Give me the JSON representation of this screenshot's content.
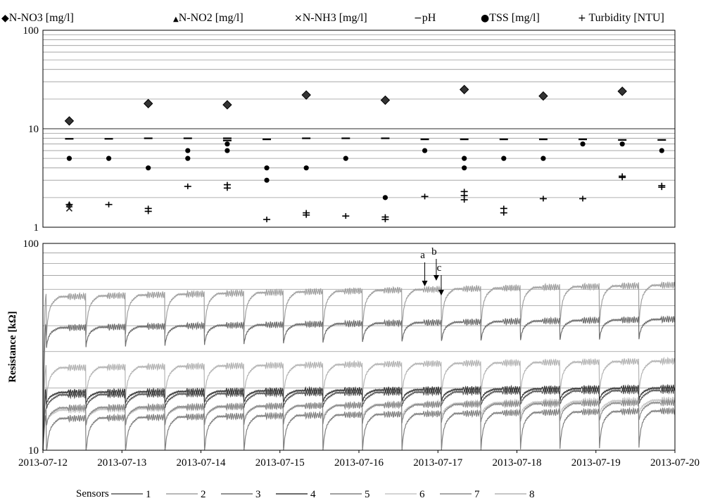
{
  "chart_data": [
    {
      "type": "scatter",
      "y_scale": "log",
      "ylim": [
        1,
        100
      ],
      "y_ticks": [
        "1",
        "10",
        "100"
      ],
      "xlim": [
        "2013-07-12",
        "2013-07-20"
      ],
      "grid": true,
      "legend_position": "top",
      "series": [
        {
          "name": "N-NO3 [mg/l]",
          "marker": "diamond",
          "symbol": "◆",
          "color": "#333333",
          "points": [
            {
              "x": "2013-07-12T08:00",
              "y": 12
            },
            {
              "x": "2013-07-13T08:00",
              "y": 18
            },
            {
              "x": "2013-07-14T08:00",
              "y": 17.5
            },
            {
              "x": "2013-07-15T08:00",
              "y": 22
            },
            {
              "x": "2013-07-16T08:00",
              "y": 19.5
            },
            {
              "x": "2013-07-17T08:00",
              "y": 25
            },
            {
              "x": "2013-07-18T08:00",
              "y": 21.5
            },
            {
              "x": "2013-07-19T08:00",
              "y": 24
            }
          ]
        },
        {
          "name": "N-NO2 [mg/l]",
          "marker": "triangle",
          "symbol": "▲",
          "color": "#333333",
          "points": [
            {
              "x": "2013-07-12T08:00",
              "y": 1.7
            }
          ]
        },
        {
          "name": "N-NH3 [mg/l]",
          "marker": "x",
          "symbol": "×",
          "color": "#333333",
          "points": [
            {
              "x": "2013-07-12T08:00",
              "y": 1.55
            }
          ]
        },
        {
          "name": "pH",
          "marker": "dash",
          "symbol": "−",
          "color": "#000000",
          "points": [
            {
              "x": "2013-07-12T08:00",
              "y": 7.9
            },
            {
              "x": "2013-07-12T20:00",
              "y": 7.9
            },
            {
              "x": "2013-07-13T08:00",
              "y": 8.0
            },
            {
              "x": "2013-07-13T20:00",
              "y": 8.0
            },
            {
              "x": "2013-07-14T08:00",
              "y": 8.0
            },
            {
              "x": "2013-07-14T08:00",
              "y": 7.6
            },
            {
              "x": "2013-07-14T20:00",
              "y": 7.8
            },
            {
              "x": "2013-07-15T08:00",
              "y": 8.0
            },
            {
              "x": "2013-07-15T20:00",
              "y": 8.0
            },
            {
              "x": "2013-07-16T08:00",
              "y": 8.0
            },
            {
              "x": "2013-07-16T20:00",
              "y": 7.8
            },
            {
              "x": "2013-07-17T08:00",
              "y": 7.8
            },
            {
              "x": "2013-07-17T20:00",
              "y": 7.8
            },
            {
              "x": "2013-07-18T08:00",
              "y": 7.8
            },
            {
              "x": "2013-07-18T20:00",
              "y": 7.8
            },
            {
              "x": "2013-07-19T08:00",
              "y": 7.7
            },
            {
              "x": "2013-07-19T20:00",
              "y": 7.7
            }
          ]
        },
        {
          "name": "TSS [mg/l]",
          "marker": "circle",
          "symbol": "●",
          "color": "#000000",
          "points": [
            {
              "x": "2013-07-12T08:00",
              "y": 5
            },
            {
              "x": "2013-07-12T20:00",
              "y": 5
            },
            {
              "x": "2013-07-13T08:00",
              "y": 4
            },
            {
              "x": "2013-07-13T20:00",
              "y": 5
            },
            {
              "x": "2013-07-13T20:00",
              "y": 6
            },
            {
              "x": "2013-07-14T08:00",
              "y": 6
            },
            {
              "x": "2013-07-14T08:00",
              "y": 7
            },
            {
              "x": "2013-07-14T20:00",
              "y": 4
            },
            {
              "x": "2013-07-14T20:00",
              "y": 3
            },
            {
              "x": "2013-07-15T08:00",
              "y": 4
            },
            {
              "x": "2013-07-15T20:00",
              "y": 5
            },
            {
              "x": "2013-07-16T08:00",
              "y": 2
            },
            {
              "x": "2013-07-16T20:00",
              "y": 6
            },
            {
              "x": "2013-07-17T08:00",
              "y": 5
            },
            {
              "x": "2013-07-17T08:00",
              "y": 4
            },
            {
              "x": "2013-07-17T20:00",
              "y": 5
            },
            {
              "x": "2013-07-18T08:00",
              "y": 5
            },
            {
              "x": "2013-07-18T20:00",
              "y": 7
            },
            {
              "x": "2013-07-19T08:00",
              "y": 7
            },
            {
              "x": "2013-07-19T20:00",
              "y": 6
            }
          ]
        },
        {
          "name": "Turbidity [NTU]",
          "marker": "plus",
          "symbol": "+",
          "color": "#000000",
          "points": [
            {
              "x": "2013-07-12T08:00",
              "y": 1.7
            },
            {
              "x": "2013-07-12T20:00",
              "y": 1.7
            },
            {
              "x": "2013-07-13T08:00",
              "y": 1.55
            },
            {
              "x": "2013-07-13T08:00",
              "y": 1.45
            },
            {
              "x": "2013-07-13T20:00",
              "y": 2.6
            },
            {
              "x": "2013-07-14T08:00",
              "y": 2.7
            },
            {
              "x": "2013-07-14T08:00",
              "y": 2.5
            },
            {
              "x": "2013-07-14T20:00",
              "y": 1.2
            },
            {
              "x": "2013-07-15T08:00",
              "y": 1.4
            },
            {
              "x": "2013-07-15T08:00",
              "y": 1.33
            },
            {
              "x": "2013-07-15T20:00",
              "y": 1.3
            },
            {
              "x": "2013-07-16T08:00",
              "y": 1.27
            },
            {
              "x": "2013-07-16T08:00",
              "y": 1.2
            },
            {
              "x": "2013-07-16T20:00",
              "y": 2.05
            },
            {
              "x": "2013-07-17T08:00",
              "y": 2.3
            },
            {
              "x": "2013-07-17T08:00",
              "y": 2.1
            },
            {
              "x": "2013-07-17T08:00",
              "y": 1.9
            },
            {
              "x": "2013-07-17T20:00",
              "y": 1.55
            },
            {
              "x": "2013-07-17T20:00",
              "y": 1.4
            },
            {
              "x": "2013-07-18T08:00",
              "y": 1.95
            },
            {
              "x": "2013-07-18T20:00",
              "y": 1.95
            },
            {
              "x": "2013-07-19T08:00",
              "y": 3.3
            },
            {
              "x": "2013-07-19T08:00",
              "y": 3.2
            },
            {
              "x": "2013-07-19T20:00",
              "y": 2.65
            },
            {
              "x": "2013-07-19T20:00",
              "y": 2.55
            }
          ]
        }
      ]
    },
    {
      "type": "line",
      "y_scale": "log",
      "ylabel": "Resistance [kΩ]",
      "ylim": [
        10,
        100
      ],
      "y_ticks": [
        "10",
        "100"
      ],
      "xlim": [
        "2013-07-12",
        "2013-07-20"
      ],
      "x_tick_labels": [
        "2013-07-12",
        "2013-07-13",
        "2013-07-14",
        "2013-07-15",
        "2013-07-16",
        "2013-07-17",
        "2013-07-18",
        "2013-07-19",
        "2013-07-20"
      ],
      "grid": true,
      "legend_title": "Sensors",
      "legend_position": "bottom",
      "cycle_period_days": 0.5,
      "cycle_start": "2013-07-12T01:00",
      "series": [
        {
          "name": "1",
          "color": "#5a5a5a",
          "start": 18.5,
          "end": 19.5
        },
        {
          "name": "2",
          "color": "#a0a0a0",
          "start": 55,
          "end": 63
        },
        {
          "name": "3",
          "color": "#6e6e6e",
          "start": 39,
          "end": 43
        },
        {
          "name": "4",
          "color": "#3c3c3c",
          "start": 19,
          "end": 20
        },
        {
          "name": "5",
          "color": "#808080",
          "start": 14.2,
          "end": 15.5
        },
        {
          "name": "6",
          "color": "#c6c6c6",
          "start": 15.6,
          "end": 17.5
        },
        {
          "name": "7",
          "color": "#8c8c8c",
          "start": 16,
          "end": 17
        },
        {
          "name": "8",
          "color": "#b4b4b4",
          "start": 25,
          "end": 27
        }
      ],
      "annotations": [
        {
          "label": "a",
          "x": "2013-07-16T20:00",
          "y": 62
        },
        {
          "label": "b",
          "x": "2013-07-16T23:30",
          "y": 66
        },
        {
          "label": "c",
          "x": "2013-07-17T01:00",
          "y": 56
        }
      ]
    }
  ]
}
